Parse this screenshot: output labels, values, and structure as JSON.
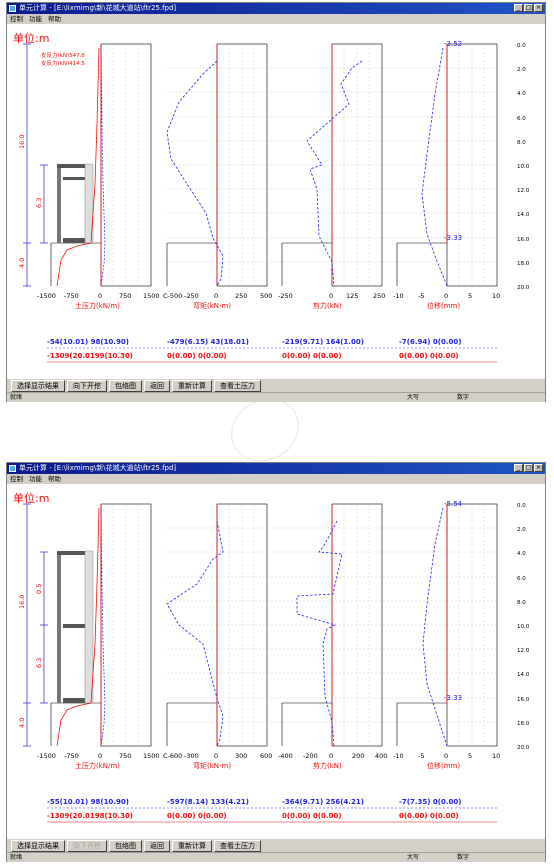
{
  "windows": [
    {
      "title": "单元计算 - [E:\\lixmimg\\新\\花城大道站\\ftr25.fpd]",
      "menu": [
        "控制",
        "功能",
        "帮助"
      ],
      "unit_label": "单位:m",
      "legend": [
        "支反力(kN)547.6",
        "支反力(kN)414.5"
      ],
      "top_value": "-3.52",
      "mid_value": "-3.33",
      "panel_labels": [
        "土压力(kN/m)",
        "弯矩(kN-m)",
        "剪力(kN)",
        "位移(mm)"
      ],
      "x_ticks": [
        [
          "-1500",
          "-750",
          "0",
          "750",
          "1500"
        ],
        [
          "C-500",
          "-250",
          "0",
          "250",
          "500"
        ],
        [
          "-250",
          "0",
          "125",
          "250"
        ],
        [
          "-10",
          "-5",
          "0",
          "5",
          "10"
        ]
      ],
      "depth_ticks": [
        "0.0",
        "2.0",
        "4.0",
        "6.0",
        "8.0",
        "10.0",
        "12.0",
        "14.0",
        "16.0",
        "18.0",
        "20.0"
      ],
      "left_dims": [
        "16.0",
        "6.3",
        "4.0"
      ],
      "summary_blue": [
        "-54(10.01)  98(10.90)",
        "-479(6.15)  43(18.01)",
        "-219(9.71)  164(1.00)",
        "-7(6.94)      0(0.00)"
      ],
      "summary_red": [
        "-1309(20.0199(10.30)",
        "0(0.00)      0(0.00)",
        "0(0.00)      0(0.00)",
        "0(0.00)      0(0.00)"
      ],
      "toolbar": [
        {
          "label": "选择显示结果",
          "disabled": false
        },
        {
          "label": "向下开挖",
          "disabled": false
        },
        {
          "label": "包络图",
          "disabled": false
        },
        {
          "label": "返回",
          "disabled": false
        },
        {
          "label": "重新计算",
          "disabled": false
        },
        {
          "label": "查看土压力",
          "disabled": false
        }
      ],
      "status": [
        "就绪",
        "大写",
        "数字"
      ]
    },
    {
      "title": "单元计算 - [E:\\lixmimg\\新\\花城大道站\\ftr25.fpd]",
      "menu": [
        "控制",
        "功能",
        "帮助"
      ],
      "unit_label": "单位:m",
      "legend": [],
      "top_value": "-5.54",
      "mid_value": "-3.33",
      "panel_labels": [
        "土压力(kN/m)",
        "弯矩(kN-m)",
        "剪力(kN)",
        "位移(mm)"
      ],
      "x_ticks": [
        [
          "-1500",
          "-750",
          "0",
          "750",
          "1500"
        ],
        [
          "C-600",
          "-300",
          "0",
          "300",
          "600"
        ],
        [
          "-400",
          "-200",
          "0",
          "200",
          "400"
        ],
        [
          "-10",
          "-5",
          "0",
          "5",
          "10"
        ]
      ],
      "depth_ticks": [
        "0.0",
        "2.0",
        "4.0",
        "6.0",
        "8.0",
        "10.0",
        "12.0",
        "14.0",
        "16.0",
        "18.0",
        "20.0"
      ],
      "left_dims": [
        "16.0",
        "0.5",
        "6.3",
        "4.0"
      ],
      "summary_blue": [
        "-55(10.01)  98(10.90)",
        "-597(8.14)  133(4.21)",
        "-364(9.71)  256(4.21)",
        "-7(7.35)    0(0.00)"
      ],
      "summary_red": [
        "-1309(20.0198(10.30)",
        "0(0.00)      0(0.00)",
        "0(0.00)      0(0.00)",
        "0(0.00)      0(0.00)"
      ],
      "toolbar": [
        {
          "label": "选择显示结果",
          "disabled": false
        },
        {
          "label": "向下开挖",
          "disabled": true
        },
        {
          "label": "包络图",
          "disabled": false
        },
        {
          "label": "返回",
          "disabled": false
        },
        {
          "label": "重新计算",
          "disabled": false
        },
        {
          "label": "查看土压力",
          "disabled": false
        }
      ],
      "status": [
        "就绪",
        "大写",
        "数字"
      ]
    }
  ],
  "colors": {
    "title_bar": "#0a1a8c",
    "curve_blue": "#2233dd",
    "line_red": "#ee1111",
    "grid": "#b0b0b0"
  }
}
